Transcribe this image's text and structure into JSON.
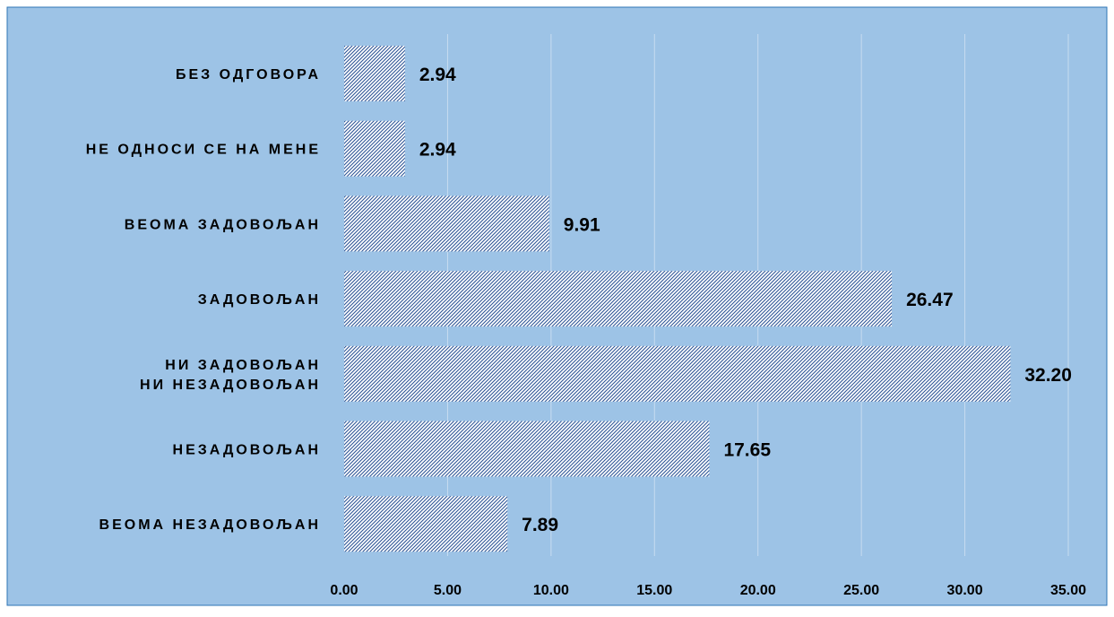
{
  "chart_data": {
    "type": "bar",
    "orientation": "horizontal",
    "categories": [
      [
        "БЕЗ ОДГОВОРА"
      ],
      [
        "НЕ ОДНОСИ СЕ НА МЕНЕ"
      ],
      [
        "ВЕОМА ЗАДОВОЉАН"
      ],
      [
        "ЗАДОВОЉАН"
      ],
      [
        "НИ ЗАДОВОЉАН",
        "НИ НЕЗАДОВОЉАН"
      ],
      [
        "НЕЗАДОВОЉАН"
      ],
      [
        "ВЕОМА НЕЗАДОВОЉАН"
      ]
    ],
    "values": [
      2.94,
      2.94,
      9.91,
      26.47,
      32.2,
      17.65,
      7.89
    ],
    "value_labels": [
      "2.94",
      "2.94",
      "9.91",
      "26.47",
      "32.20",
      "17.65",
      "7.89"
    ],
    "xticks": [
      0,
      5,
      10,
      15,
      20,
      25,
      30,
      35
    ],
    "xtick_labels": [
      "0.00",
      "5.00",
      "10.00",
      "15.00",
      "20.00",
      "25.00",
      "30.00",
      "35.00"
    ],
    "xlim": [
      0,
      35
    ],
    "title": "",
    "xlabel": "",
    "ylabel": "",
    "grid": "vertical",
    "legend": "none",
    "colors": {
      "background": "#9DC3E6",
      "gridline": "#C7DCF0",
      "bar_fill": "#ffffff",
      "bar_hatch": "#2E5597",
      "border": "#2E75B6"
    }
  }
}
